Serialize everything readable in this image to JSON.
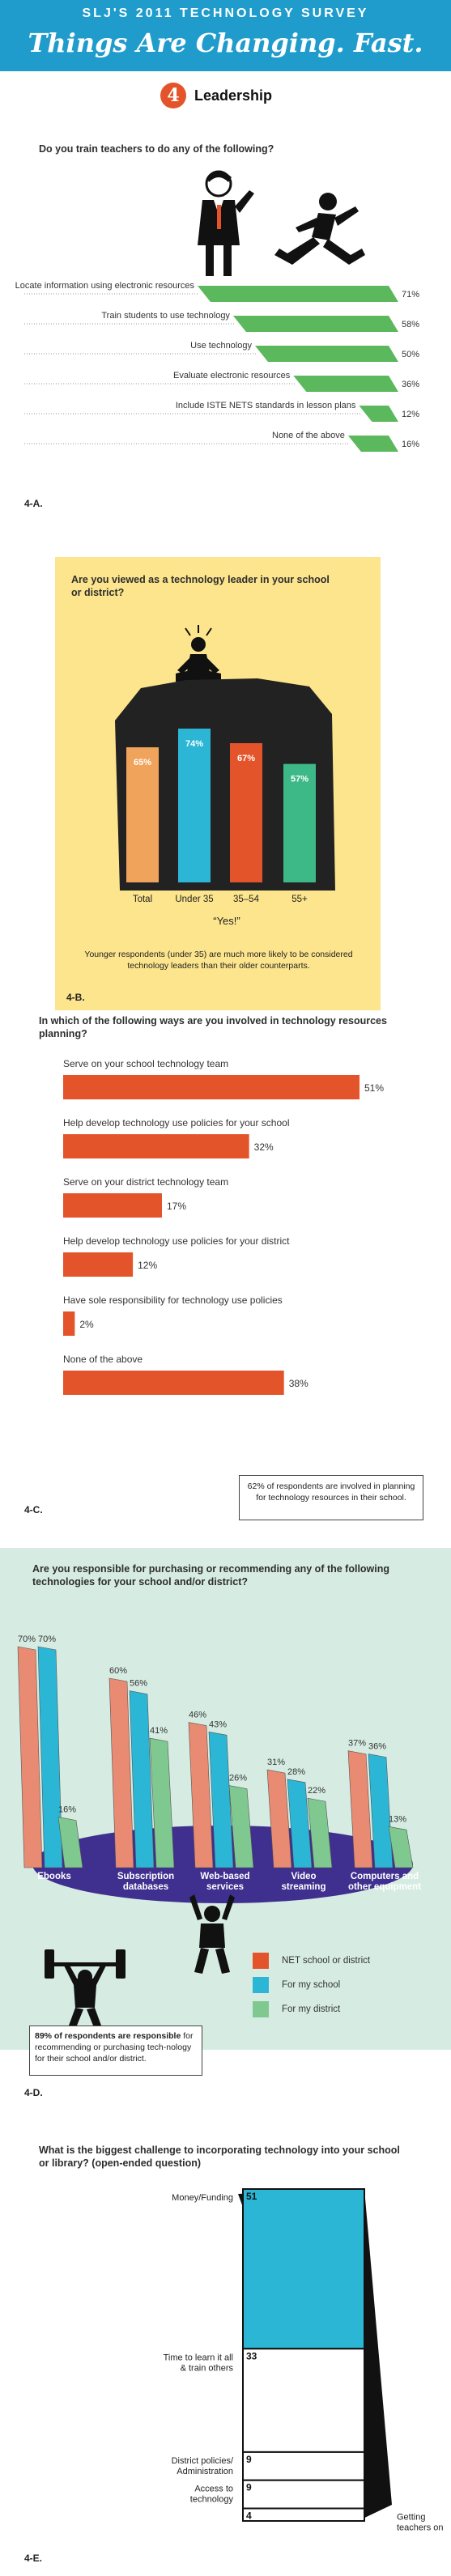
{
  "header": {
    "supertitle": "SLJ'S 2011 TECHNOLOGY SURVEY",
    "title": "Things Are Changing. Fast."
  },
  "section": {
    "number": "4",
    "title": "Leadership"
  },
  "colors": {
    "header_blue": "#1f9ccc",
    "orange": "#e4542b",
    "green": "#5cb85c",
    "blue": "#2cb6d6",
    "salmon": "#e98a72",
    "mint": "#7fc890",
    "yellow_bg": "#fce58c",
    "teal_bg": "#d6ece2",
    "purple": "#3f2f8f"
  },
  "icons": [
    "teacher-figure-icon",
    "student-jumping-icon",
    "meditating-figure-icon",
    "weightlifter-icon",
    "hanging-figure-icon",
    "money-icon",
    "chair-icon"
  ],
  "fig4a": {
    "question": "Do you train teachers to do any of the following?",
    "label": "4-A.",
    "chart_data": {
      "type": "bar",
      "categories": [
        "Locate information using electronic resources",
        "Train students to use technology",
        "Use technology",
        "Evaluate electronic resources",
        "Include ISTE NETS standards in lesson plans",
        "None of the above"
      ],
      "values": [
        71,
        58,
        50,
        36,
        12,
        16
      ],
      "value_labels": [
        "71%",
        "58%",
        "50%",
        "36%",
        "12%",
        "16%"
      ],
      "unit": "%"
    }
  },
  "fig4b": {
    "question": "Are you viewed as a technology leader in your school or district?",
    "label": "4-B.",
    "answer": "“Yes!”",
    "note": "Younger respondents  (under 35) are much more likely to be considered technology leaders than their older counterparts.",
    "chart_data": {
      "type": "bar",
      "categories": [
        "Total",
        "Under 35",
        "35–54",
        "55+"
      ],
      "values": [
        65,
        74,
        67,
        57
      ],
      "value_labels": [
        "65%",
        "74%",
        "67%",
        "57%"
      ],
      "colors": [
        "#f0a35a",
        "#2cb6d6",
        "#e4542b",
        "#3db887"
      ]
    }
  },
  "fig4c": {
    "question": "In which of the following ways are you involved in technology resources planning?",
    "label": "4-C.",
    "note": "62% of respondents are involved in planning for technology resources in their school.",
    "chart_data": {
      "type": "bar",
      "categories": [
        "Serve on your school technology team",
        "Help develop technology use policies for your school",
        "Serve on your district technology team",
        "Help develop technology use policies for your district",
        "Have sole responsibility for technology use policies",
        "None of the above"
      ],
      "values": [
        51,
        32,
        17,
        12,
        2,
        38
      ],
      "value_labels": [
        "51%",
        "32%",
        "17%",
        "12%",
        "2%",
        "38%"
      ]
    }
  },
  "fig4d": {
    "question": "Are you responsible for purchasing or recommending any of the following technologies for your school and/or district?",
    "label": "4-D.",
    "note_bold": "89% of respondents are responsible",
    "note": "for recommending or purchasing tech-nology for their school and/or district.",
    "chart_data": {
      "type": "bar",
      "categories": [
        "Ebooks",
        "Subscription databases",
        "Web-based services",
        "Video streaming",
        "Computers and other equipment"
      ],
      "category_lines": [
        [
          "Ebooks"
        ],
        [
          "Subscription",
          "databases"
        ],
        [
          "Web-based",
          "services"
        ],
        [
          "Video",
          "streaming"
        ],
        [
          "Computers and",
          "other equipment"
        ]
      ],
      "series": [
        {
          "name": "NET school or district",
          "color": "#e98a72",
          "values": [
            70,
            60,
            46,
            31,
            37
          ],
          "value_labels": [
            "70%",
            "60%",
            "46%",
            "31%",
            "37%"
          ]
        },
        {
          "name": "For my school",
          "color": "#2cb6d6",
          "values": [
            70,
            56,
            43,
            28,
            36
          ],
          "value_labels": [
            "70%",
            "56%",
            "43%",
            "28%",
            "36%"
          ]
        },
        {
          "name": "For my district",
          "color": "#7fc890",
          "values": [
            16,
            41,
            26,
            22,
            13
          ],
          "value_labels": [
            "16%",
            "41%",
            "26%",
            "22%",
            "13%"
          ]
        }
      ]
    }
  },
  "fig4e": {
    "question": "What is the biggest challenge to incorporating technology into your school or library? (open-ended question)",
    "label": "4-E.",
    "chart_data": {
      "type": "bar",
      "categories": [
        "Money/Funding",
        "Time to learn it all & train others",
        "District policies/ Administration",
        "Access to technology",
        "Getting teachers on board"
      ],
      "category_lines": [
        [
          "Money/Funding"
        ],
        [
          "Time to learn it all",
          "& train others"
        ],
        [
          "District policies/",
          "Administration"
        ],
        [
          "Access to",
          "technology"
        ],
        [
          "Getting",
          "teachers on",
          "board"
        ]
      ],
      "values": [
        51,
        33,
        9,
        9,
        4
      ],
      "value_labels": [
        "51",
        "33",
        "9",
        "9",
        "4"
      ]
    }
  }
}
